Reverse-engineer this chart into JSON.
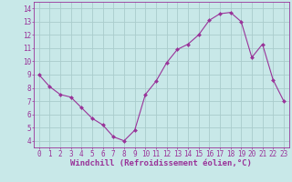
{
  "x": [
    0,
    1,
    2,
    3,
    4,
    5,
    6,
    7,
    8,
    9,
    10,
    11,
    12,
    13,
    14,
    15,
    16,
    17,
    18,
    19,
    20,
    21,
    22,
    23
  ],
  "y": [
    9.0,
    8.1,
    7.5,
    7.3,
    6.5,
    5.7,
    5.2,
    4.3,
    4.0,
    4.8,
    7.5,
    8.5,
    9.9,
    10.9,
    11.3,
    12.0,
    13.1,
    13.6,
    13.7,
    13.0,
    10.3,
    11.3,
    8.6,
    7.0
  ],
  "line_color": "#993399",
  "marker": "D",
  "marker_size": 2.0,
  "bg_color": "#c8e8e8",
  "grid_color": "#aacccc",
  "xlabel": "Windchill (Refroidissement éolien,°C)",
  "ylim": [
    3.5,
    14.5
  ],
  "xlim": [
    -0.5,
    23.5
  ],
  "yticks": [
    4,
    5,
    6,
    7,
    8,
    9,
    10,
    11,
    12,
    13,
    14
  ],
  "xticks": [
    0,
    1,
    2,
    3,
    4,
    5,
    6,
    7,
    8,
    9,
    10,
    11,
    12,
    13,
    14,
    15,
    16,
    17,
    18,
    19,
    20,
    21,
    22,
    23
  ],
  "tick_color": "#993399",
  "label_color": "#993399",
  "xlabel_fontsize": 6.5,
  "tick_fontsize": 5.5,
  "linewidth": 0.8
}
